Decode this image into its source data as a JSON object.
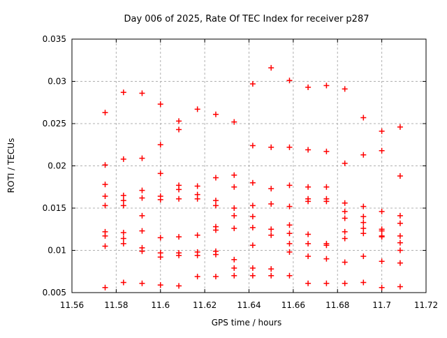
{
  "window": {
    "background": "#ffffff"
  },
  "chart_data": {
    "type": "scatter",
    "title": "Day 006 of 2025, Rate Of TEC Index for receiver p287",
    "xlabel": "GPS time / hours",
    "ylabel": "ROTI / TECUs",
    "xlim": [
      11.56,
      11.72
    ],
    "ylim": [
      0.005,
      0.035
    ],
    "xticks": [
      11.56,
      11.58,
      11.6,
      11.62,
      11.64,
      11.66,
      11.68,
      11.7,
      11.72
    ],
    "yticks": [
      0.005,
      0.01,
      0.015,
      0.02,
      0.025,
      0.03,
      0.035
    ],
    "grid": true,
    "legend": "none",
    "marker": {
      "shape": "plus",
      "color": "#ff0000",
      "size": 8
    },
    "grid_color": "#b0b0b0",
    "border_color": "#000000",
    "series": [
      {
        "name": "ROTI",
        "points": [
          [
            11.575,
            0.0263
          ],
          [
            11.575,
            0.0201
          ],
          [
            11.575,
            0.0178
          ],
          [
            11.575,
            0.0164
          ],
          [
            11.575,
            0.0153
          ],
          [
            11.575,
            0.0122
          ],
          [
            11.575,
            0.0117
          ],
          [
            11.575,
            0.0105
          ],
          [
            11.575,
            0.0056
          ],
          [
            11.5833,
            0.0287
          ],
          [
            11.5833,
            0.0208
          ],
          [
            11.5833,
            0.0165
          ],
          [
            11.5833,
            0.0159
          ],
          [
            11.5833,
            0.0153
          ],
          [
            11.5833,
            0.0121
          ],
          [
            11.5833,
            0.0114
          ],
          [
            11.5833,
            0.0108
          ],
          [
            11.5833,
            0.0062
          ],
          [
            11.5917,
            0.0286
          ],
          [
            11.5917,
            0.0209
          ],
          [
            11.5917,
            0.0171
          ],
          [
            11.5917,
            0.0162
          ],
          [
            11.5917,
            0.0141
          ],
          [
            11.5917,
            0.0123
          ],
          [
            11.5917,
            0.0103
          ],
          [
            11.5917,
            0.0099
          ],
          [
            11.5917,
            0.0061
          ],
          [
            11.6,
            0.0273
          ],
          [
            11.6,
            0.0225
          ],
          [
            11.6,
            0.0191
          ],
          [
            11.6,
            0.0164
          ],
          [
            11.6,
            0.016
          ],
          [
            11.6,
            0.0115
          ],
          [
            11.6,
            0.0097
          ],
          [
            11.6,
            0.0092
          ],
          [
            11.6,
            0.0059
          ],
          [
            11.6083,
            0.0253
          ],
          [
            11.6083,
            0.0243
          ],
          [
            11.6083,
            0.0177
          ],
          [
            11.6083,
            0.0172
          ],
          [
            11.6083,
            0.0161
          ],
          [
            11.6083,
            0.0116
          ],
          [
            11.6083,
            0.0097
          ],
          [
            11.6083,
            0.0094
          ],
          [
            11.6083,
            0.0058
          ],
          [
            11.6167,
            0.0267
          ],
          [
            11.6167,
            0.0176
          ],
          [
            11.6167,
            0.0166
          ],
          [
            11.6167,
            0.0161
          ],
          [
            11.6167,
            0.0118
          ],
          [
            11.6167,
            0.0098
          ],
          [
            11.6167,
            0.0094
          ],
          [
            11.6167,
            0.0069
          ],
          [
            11.625,
            0.0261
          ],
          [
            11.625,
            0.0186
          ],
          [
            11.625,
            0.0159
          ],
          [
            11.625,
            0.0153
          ],
          [
            11.625,
            0.0128
          ],
          [
            11.625,
            0.0124
          ],
          [
            11.625,
            0.0099
          ],
          [
            11.625,
            0.0095
          ],
          [
            11.625,
            0.0069
          ],
          [
            11.6333,
            0.0252
          ],
          [
            11.6333,
            0.0189
          ],
          [
            11.6333,
            0.0175
          ],
          [
            11.6333,
            0.015
          ],
          [
            11.6333,
            0.0141
          ],
          [
            11.6333,
            0.0126
          ],
          [
            11.6333,
            0.0089
          ],
          [
            11.6333,
            0.0079
          ],
          [
            11.6333,
            0.007
          ],
          [
            11.6417,
            0.0297
          ],
          [
            11.6417,
            0.0224
          ],
          [
            11.6417,
            0.018
          ],
          [
            11.6417,
            0.0153
          ],
          [
            11.6417,
            0.014
          ],
          [
            11.6417,
            0.0127
          ],
          [
            11.6417,
            0.0106
          ],
          [
            11.6417,
            0.0079
          ],
          [
            11.6417,
            0.007
          ],
          [
            11.65,
            0.0316
          ],
          [
            11.65,
            0.0222
          ],
          [
            11.65,
            0.0173
          ],
          [
            11.65,
            0.0155
          ],
          [
            11.65,
            0.0125
          ],
          [
            11.65,
            0.0118
          ],
          [
            11.65,
            0.0078
          ],
          [
            11.65,
            0.007
          ],
          [
            11.6583,
            0.0301
          ],
          [
            11.6583,
            0.0222
          ],
          [
            11.6583,
            0.0177
          ],
          [
            11.6583,
            0.0152
          ],
          [
            11.6583,
            0.013
          ],
          [
            11.6583,
            0.012
          ],
          [
            11.6583,
            0.0108
          ],
          [
            11.6583,
            0.0098
          ],
          [
            11.6583,
            0.007
          ],
          [
            11.6667,
            0.0293
          ],
          [
            11.6667,
            0.0219
          ],
          [
            11.6667,
            0.0175
          ],
          [
            11.6667,
            0.0161
          ],
          [
            11.6667,
            0.0158
          ],
          [
            11.6667,
            0.0119
          ],
          [
            11.6667,
            0.0108
          ],
          [
            11.6667,
            0.0093
          ],
          [
            11.6667,
            0.0061
          ],
          [
            11.675,
            0.0295
          ],
          [
            11.675,
            0.0217
          ],
          [
            11.675,
            0.0175
          ],
          [
            11.675,
            0.0161
          ],
          [
            11.675,
            0.0158
          ],
          [
            11.675,
            0.0108
          ],
          [
            11.675,
            0.0106
          ],
          [
            11.675,
            0.009
          ],
          [
            11.675,
            0.0061
          ],
          [
            11.6833,
            0.0291
          ],
          [
            11.6833,
            0.0203
          ],
          [
            11.6833,
            0.0156
          ],
          [
            11.6833,
            0.0146
          ],
          [
            11.6833,
            0.0138
          ],
          [
            11.6833,
            0.0122
          ],
          [
            11.6833,
            0.0114
          ],
          [
            11.6833,
            0.0086
          ],
          [
            11.6833,
            0.0061
          ],
          [
            11.6917,
            0.0257
          ],
          [
            11.6917,
            0.0213
          ],
          [
            11.6917,
            0.0152
          ],
          [
            11.6917,
            0.014
          ],
          [
            11.6917,
            0.0133
          ],
          [
            11.6917,
            0.0126
          ],
          [
            11.6917,
            0.012
          ],
          [
            11.6917,
            0.0093
          ],
          [
            11.6917,
            0.0062
          ],
          [
            11.7,
            0.0241
          ],
          [
            11.7,
            0.0218
          ],
          [
            11.7,
            0.0146
          ],
          [
            11.7,
            0.0125
          ],
          [
            11.7,
            0.0123
          ],
          [
            11.7,
            0.0117
          ],
          [
            11.7,
            0.0116
          ],
          [
            11.7,
            0.0087
          ],
          [
            11.7,
            0.0056
          ],
          [
            11.7083,
            0.0246
          ],
          [
            11.7083,
            0.0188
          ],
          [
            11.7083,
            0.0141
          ],
          [
            11.7083,
            0.0132
          ],
          [
            11.7083,
            0.0117
          ],
          [
            11.7083,
            0.0109
          ],
          [
            11.7083,
            0.01
          ],
          [
            11.7083,
            0.0085
          ],
          [
            11.7083,
            0.0057
          ]
        ]
      }
    ]
  }
}
